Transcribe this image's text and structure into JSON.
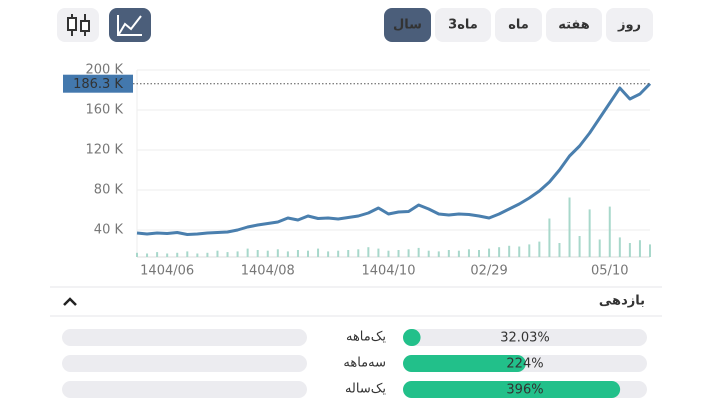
{
  "toolbar": {
    "tabs": [
      "روز",
      "هفته",
      "ماه",
      "3ماه",
      "سال"
    ],
    "active": "سال"
  },
  "chart_data": {
    "type": "line",
    "categories": [
      null,
      null,
      null,
      "1404/06",
      null,
      null,
      null,
      null,
      null,
      null,
      null,
      null,
      null,
      "1404/08",
      null,
      null,
      null,
      null,
      null,
      null,
      null,
      null,
      null,
      null,
      null,
      "1404/10",
      null,
      null,
      null,
      null,
      null,
      null,
      null,
      null,
      null,
      "02/29",
      null,
      null,
      null,
      null,
      null,
      null,
      null,
      null,
      null,
      null,
      null,
      "05/10",
      null,
      null,
      null,
      null
    ],
    "values": [
      37000,
      36000,
      37000,
      36500,
      37500,
      35500,
      36000,
      37000,
      37500,
      38000,
      40000,
      43000,
      45000,
      46500,
      48000,
      52000,
      50000,
      54000,
      51500,
      52000,
      51000,
      52500,
      54000,
      57000,
      62000,
      56000,
      58000,
      58500,
      65000,
      61000,
      56000,
      55000,
      56000,
      55500,
      54000,
      52000,
      56000,
      61000,
      66000,
      72000,
      79000,
      88000,
      100000,
      114000,
      124000,
      137000,
      152000,
      167000,
      182000,
      171000,
      176000,
      186300
    ],
    "color": "#4a7fae",
    "volume": [
      6,
      5,
      7,
      5,
      6,
      8,
      5,
      6,
      9,
      7,
      8,
      12,
      10,
      9,
      11,
      8,
      10,
      9,
      12,
      8,
      9,
      10,
      11,
      14,
      12,
      9,
      10,
      11,
      13,
      9,
      8,
      10,
      9,
      11,
      10,
      12,
      14,
      16,
      15,
      18,
      22,
      55,
      20,
      85,
      30,
      68,
      25,
      72,
      28,
      20,
      24,
      18
    ],
    "volume_color": "#a8d8cb",
    "y2lim": [
      0,
      100
    ],
    "ylim": [
      13000,
      200000
    ],
    "yticks": [
      {
        "value": 40000,
        "label": "40 K"
      },
      {
        "value": 80000,
        "label": "80 K"
      },
      {
        "value": 120000,
        "label": "120 K"
      },
      {
        "value": 160000,
        "label": "160 K"
      },
      {
        "value": 200000,
        "label": "200 K"
      }
    ],
    "grid": true,
    "last_value": 186300,
    "last_label": "186.3 K"
  },
  "returns": {
    "title": "بازدهی",
    "xlim": [
      0,
      445
    ],
    "color": "#22c08a",
    "rows": [
      {
        "label": "یک‌ماهه",
        "value": 32.03,
        "value_label": "32.03%"
      },
      {
        "label": "سه‌ماهه",
        "value": 224,
        "value_label": "224%"
      },
      {
        "label": "یک‌ساله",
        "value": 396,
        "value_label": "396%"
      }
    ]
  }
}
